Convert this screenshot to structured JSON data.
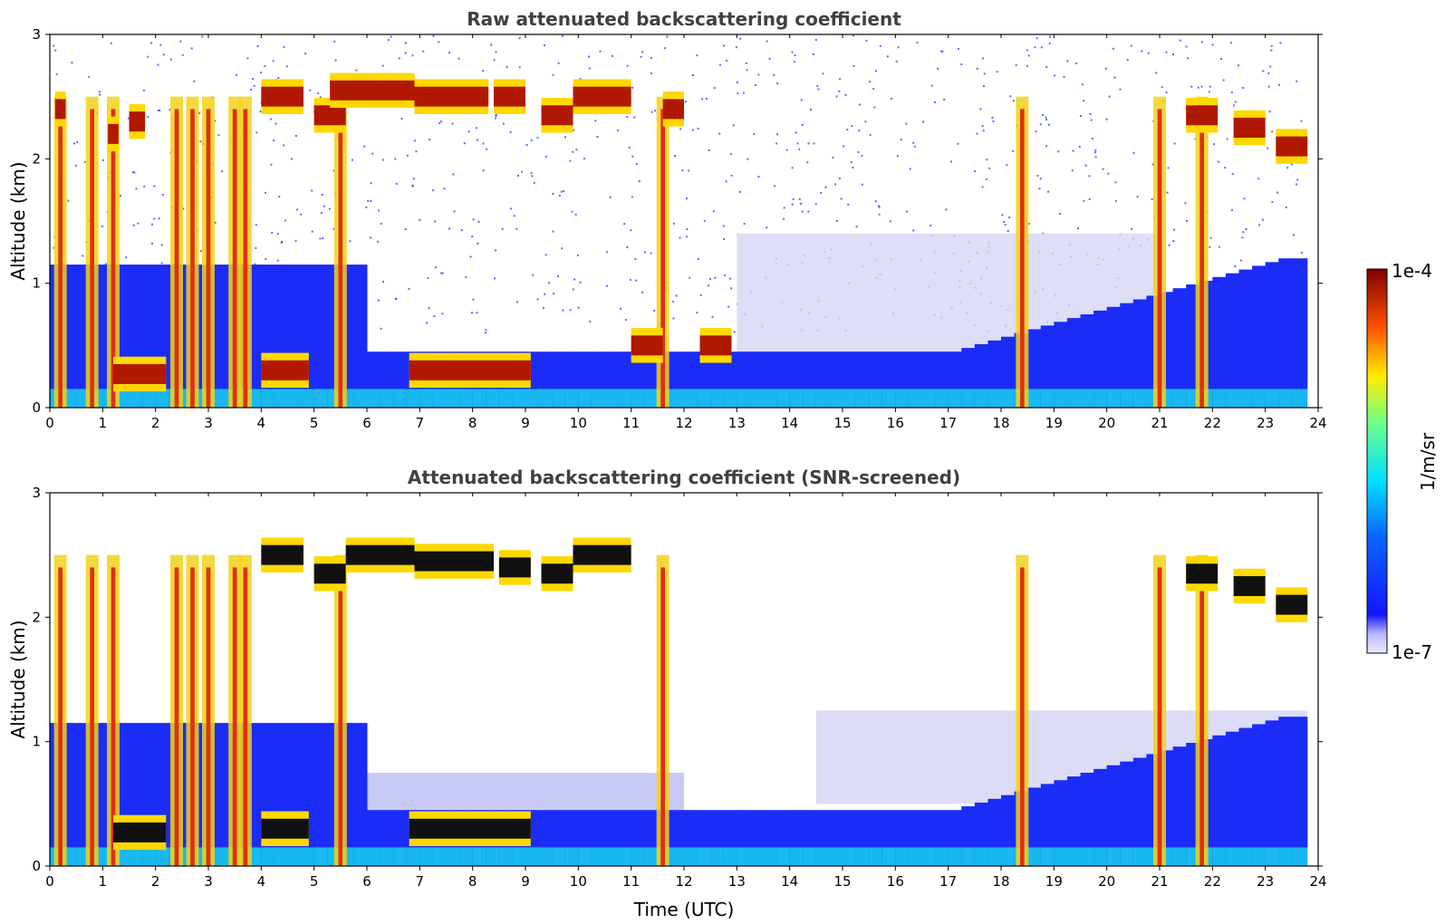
{
  "chart_data": [
    {
      "type": "heatmap",
      "title": "Raw attenuated backscattering coefficient",
      "xlabel": "",
      "ylabel": "Altitude (km)",
      "xlim": [
        0,
        24
      ],
      "ylim": [
        0,
        3
      ],
      "xticks": [
        "0",
        "1",
        "2",
        "3",
        "4",
        "5",
        "6",
        "7",
        "8",
        "9",
        "10",
        "11",
        "12",
        "13",
        "14",
        "15",
        "16",
        "17",
        "18",
        "19",
        "20",
        "21",
        "22",
        "23",
        "24"
      ],
      "yticks": [
        "0",
        "1",
        "2",
        "3"
      ],
      "screened": false,
      "cloud_layers": [
        {
          "t0": 0.1,
          "t1": 0.3,
          "alt": 2.4
        },
        {
          "t0": 1.1,
          "t1": 1.3,
          "alt": 2.2
        },
        {
          "t0": 1.5,
          "t1": 1.8,
          "alt": 2.3
        },
        {
          "t0": 4.0,
          "t1": 4.8,
          "alt": 2.5
        },
        {
          "t0": 5.0,
          "t1": 5.6,
          "alt": 2.35
        },
        {
          "t0": 5.3,
          "t1": 6.0,
          "alt": 2.55
        },
        {
          "t0": 6.0,
          "t1": 6.9,
          "alt": 2.55
        },
        {
          "t0": 6.9,
          "t1": 8.3,
          "alt": 2.5
        },
        {
          "t0": 8.4,
          "t1": 9.0,
          "alt": 2.5
        },
        {
          "t0": 9.3,
          "t1": 9.9,
          "alt": 2.35
        },
        {
          "t0": 9.9,
          "t1": 11.0,
          "alt": 2.5
        },
        {
          "t0": 11.6,
          "t1": 12.0,
          "alt": 2.4
        },
        {
          "t0": 21.5,
          "t1": 22.1,
          "alt": 2.35
        },
        {
          "t0": 22.4,
          "t1": 23.0,
          "alt": 2.25
        },
        {
          "t0": 23.2,
          "t1": 23.8,
          "alt": 2.1
        },
        {
          "t0": 6.8,
          "t1": 9.1,
          "alt": 0.3
        },
        {
          "t0": 1.2,
          "t1": 2.2,
          "alt": 0.27
        },
        {
          "t0": 4.0,
          "t1": 4.9,
          "alt": 0.3
        },
        {
          "t0": 11.0,
          "t1": 11.6,
          "alt": 0.5
        },
        {
          "t0": 12.3,
          "t1": 12.9,
          "alt": 0.5
        }
      ],
      "vertical_columns": [
        0.2,
        0.8,
        1.2,
        2.4,
        2.7,
        3.0,
        3.5,
        3.7,
        5.5,
        11.6,
        18.4,
        21.0,
        21.8
      ]
    },
    {
      "type": "heatmap",
      "title": "Attenuated backscattering coefficient (SNR-screened)",
      "xlabel": "Time (UTC)",
      "ylabel": "Altitude (km)",
      "xlim": [
        0,
        24
      ],
      "ylim": [
        0,
        3
      ],
      "xticks": [
        "0",
        "1",
        "2",
        "3",
        "4",
        "5",
        "6",
        "7",
        "8",
        "9",
        "10",
        "11",
        "12",
        "13",
        "14",
        "15",
        "16",
        "17",
        "18",
        "19",
        "20",
        "21",
        "22",
        "23",
        "24"
      ],
      "yticks": [
        "0",
        "1",
        "2",
        "3"
      ],
      "screened": true,
      "cloud_layers": [
        {
          "t0": 4.0,
          "t1": 4.8,
          "alt": 2.5
        },
        {
          "t0": 5.0,
          "t1": 5.6,
          "alt": 2.35
        },
        {
          "t0": 5.6,
          "t1": 6.9,
          "alt": 2.5
        },
        {
          "t0": 6.9,
          "t1": 8.4,
          "alt": 2.45
        },
        {
          "t0": 8.5,
          "t1": 9.1,
          "alt": 2.4
        },
        {
          "t0": 9.3,
          "t1": 9.9,
          "alt": 2.35
        },
        {
          "t0": 9.9,
          "t1": 11.0,
          "alt": 2.5
        },
        {
          "t0": 21.5,
          "t1": 22.1,
          "alt": 2.35
        },
        {
          "t0": 22.4,
          "t1": 23.0,
          "alt": 2.25
        },
        {
          "t0": 23.2,
          "t1": 23.8,
          "alt": 2.1
        },
        {
          "t0": 6.8,
          "t1": 9.1,
          "alt": 0.3
        },
        {
          "t0": 1.2,
          "t1": 2.2,
          "alt": 0.27
        },
        {
          "t0": 4.0,
          "t1": 4.9,
          "alt": 0.3
        }
      ],
      "vertical_columns": [
        0.2,
        0.8,
        1.2,
        2.4,
        2.7,
        3.0,
        3.5,
        3.7,
        5.5,
        11.6,
        18.4,
        21.0,
        21.8
      ]
    }
  ],
  "colorbar": {
    "label": "1/m/sr",
    "min_label": "1e-7",
    "max_label": "1e-4",
    "colormap": "jet"
  }
}
